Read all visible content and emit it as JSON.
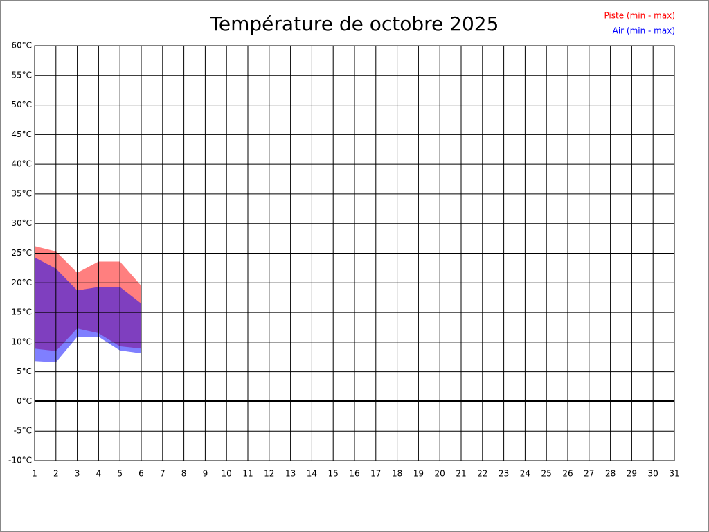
{
  "chart_data": {
    "type": "range-area",
    "title": "Température de octobre 2025",
    "x": [
      1,
      2,
      3,
      4,
      5,
      6
    ],
    "series": [
      {
        "name": "Piste (min - max)",
        "color": "#ff0000",
        "min": [
          8.9,
          8.5,
          12.3,
          11.5,
          9.3,
          8.9
        ],
        "max": [
          26.2,
          25.3,
          21.7,
          23.6,
          23.6,
          19.5
        ]
      },
      {
        "name": "Air (min - max)",
        "color": "#0000ff",
        "min": [
          6.8,
          6.6,
          10.9,
          10.9,
          8.6,
          8.1
        ],
        "max": [
          24.3,
          22.4,
          18.7,
          19.3,
          19.3,
          16.5
        ]
      }
    ],
    "fill_opacity": 0.5,
    "xlim": [
      1,
      31
    ],
    "xticks": [
      1,
      2,
      3,
      4,
      5,
      6,
      7,
      8,
      9,
      10,
      11,
      12,
      13,
      14,
      15,
      16,
      17,
      18,
      19,
      20,
      21,
      22,
      23,
      24,
      25,
      26,
      27,
      28,
      29,
      30,
      31
    ],
    "ylim": [
      -10,
      60
    ],
    "yticks": [
      {
        "value": -10,
        "label": "-10°C"
      },
      {
        "value": -5,
        "label": "-5°C"
      },
      {
        "value": 0,
        "label": "0°C"
      },
      {
        "value": 5,
        "label": "5°C"
      },
      {
        "value": 10,
        "label": "10°C"
      },
      {
        "value": 15,
        "label": "15°C"
      },
      {
        "value": 20,
        "label": "20°C"
      },
      {
        "value": 25,
        "label": "25°C"
      },
      {
        "value": 30,
        "label": "30°C"
      },
      {
        "value": 35,
        "label": "35°C"
      },
      {
        "value": 40,
        "label": "40°C"
      },
      {
        "value": 45,
        "label": "45°C"
      },
      {
        "value": 50,
        "label": "50°C"
      },
      {
        "value": 55,
        "label": "55°C"
      },
      {
        "value": 60,
        "label": "60°C"
      }
    ],
    "grid": true,
    "zero_line": true,
    "legend": "top-right"
  }
}
